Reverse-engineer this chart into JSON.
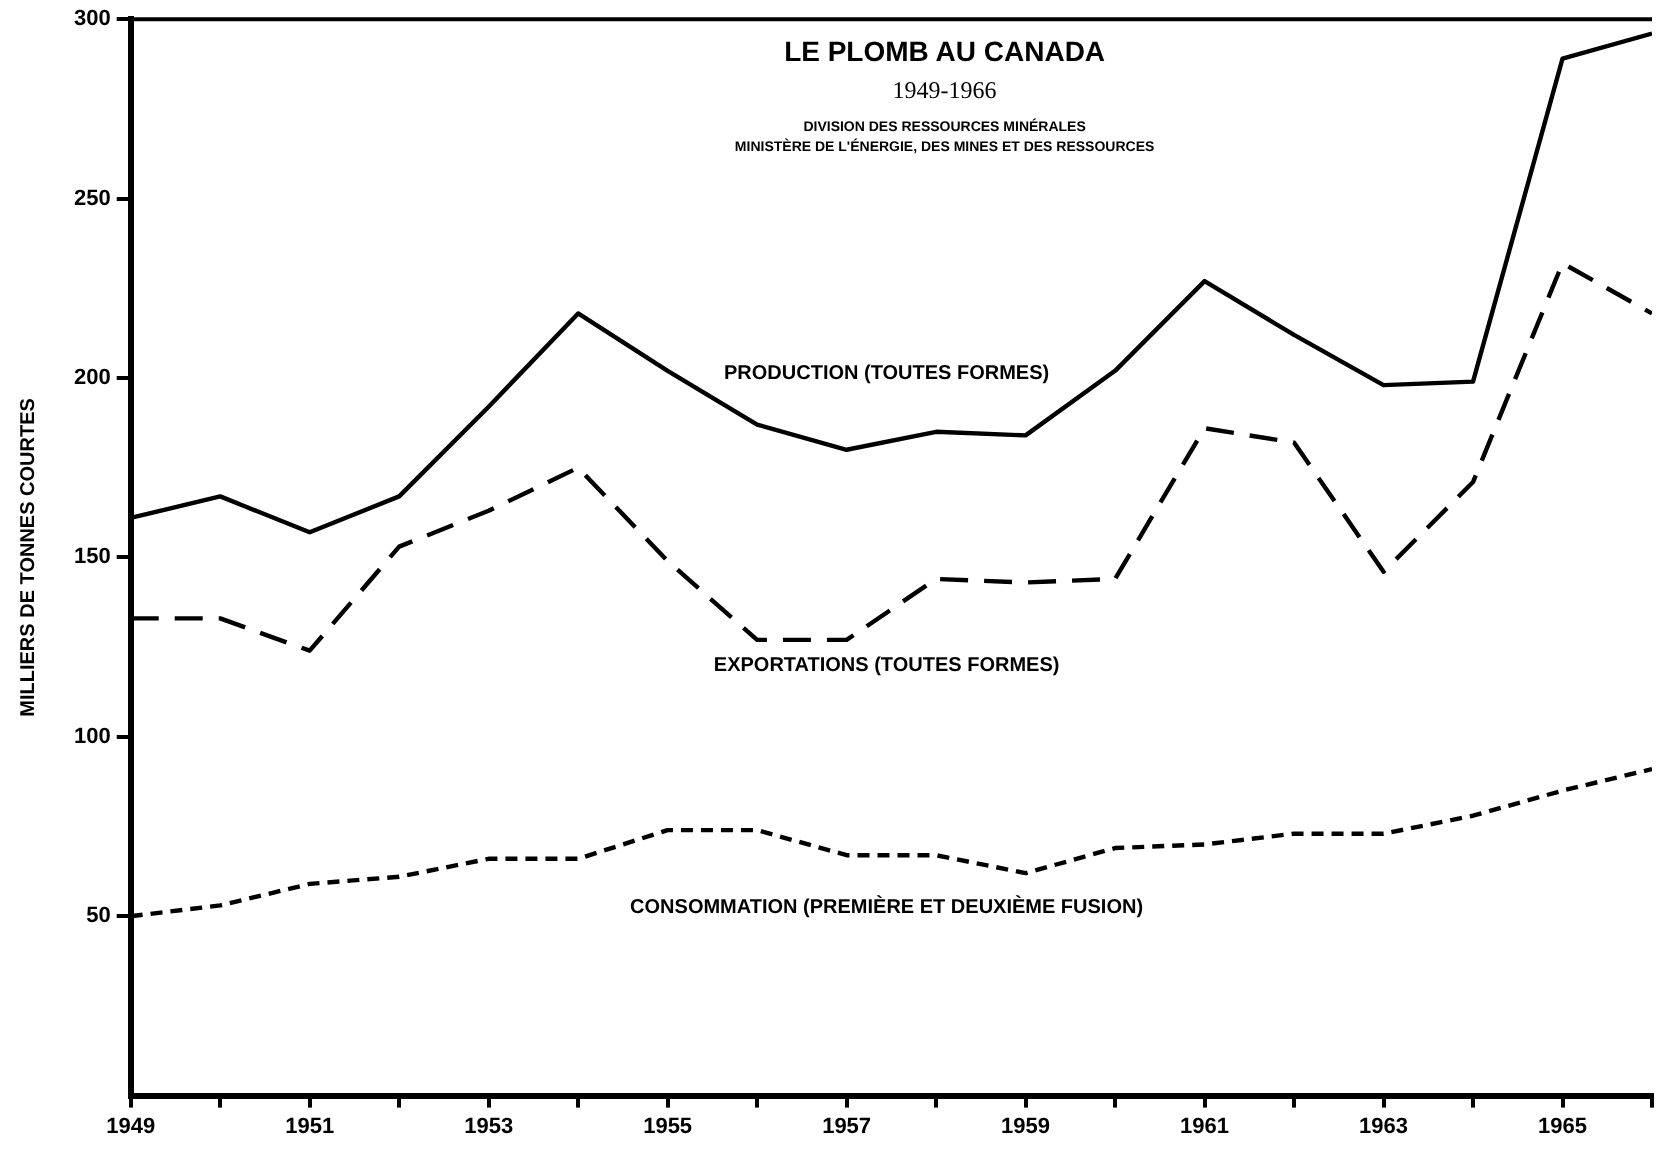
{
  "chart_data": {
    "type": "line",
    "title": "LE PLOMB AU CANADA",
    "subtitle": "1949-1966",
    "ylabel": "MILLIERS DE TONNES COURTES",
    "annotations": [
      "DIVISION DES RESSOURCES MINÉRALES",
      "MINISTÈRE DE L'ÉNERGIE, DES MINES ET DES RESSOURCES"
    ],
    "x": [
      1949,
      1950,
      1951,
      1952,
      1953,
      1954,
      1955,
      1956,
      1957,
      1958,
      1959,
      1960,
      1961,
      1962,
      1963,
      1964,
      1965,
      1966
    ],
    "series": [
      {
        "name": "PRODUCTION (TOUTES FORMES)",
        "color": "#000000",
        "line_style": "solid",
        "values": [
          161,
          167,
          157,
          167,
          192,
          218,
          202,
          187,
          180,
          185,
          184,
          202,
          227,
          212,
          198,
          199,
          289,
          296
        ]
      },
      {
        "name": "EXPORTATIONS (TOUTES FORMES)",
        "color": "#000000",
        "line_style": "dashed",
        "values": [
          133,
          133,
          124,
          153,
          163,
          175,
          149,
          127,
          127,
          144,
          143,
          144,
          186,
          182,
          146,
          171,
          232,
          218
        ]
      },
      {
        "name": "CONSOMMATION (PREMIÈRE ET DEUXIÈME FUSION)",
        "color": "#000000",
        "line_style": "dotted",
        "values": [
          50,
          53,
          59,
          61,
          66,
          66,
          74,
          74,
          67,
          67,
          62,
          69,
          70,
          73,
          73,
          78,
          85,
          91
        ]
      }
    ],
    "xlim": [
      1949,
      1966
    ],
    "xticks": [
      1949,
      {
        "value": 1950,
        "label": null
      },
      1951,
      {
        "value": 1952,
        "label": null
      },
      1953,
      {
        "value": 1954,
        "label": null
      },
      1955,
      {
        "value": 1956,
        "label": null
      },
      1957,
      {
        "value": 1958,
        "label": null
      },
      1959,
      {
        "value": 1960,
        "label": null
      },
      1961,
      {
        "value": 1962,
        "label": null
      },
      1963,
      {
        "value": 1964,
        "label": null
      },
      1965,
      {
        "value": 1966,
        "label": null
      }
    ],
    "ylim": [
      0,
      300
    ],
    "yticks": [
      50,
      100,
      150,
      200,
      250,
      300
    ],
    "grid": false,
    "legend": false,
    "marker": "none"
  }
}
